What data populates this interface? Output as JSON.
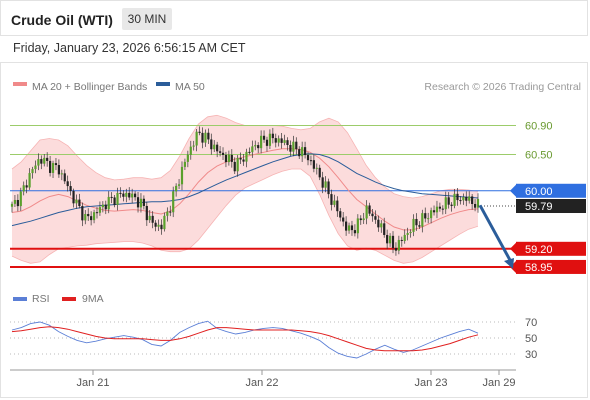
{
  "header": {
    "instrument": "Crude Oil (WTI)",
    "timeframe": "30 MIN",
    "datetime": "Friday, January 23, 2026 6:56:15 AM CET"
  },
  "legend": {
    "ma20_label": "MA 20 + Bollinger Bands",
    "ma50_label": "MA 50",
    "ma20_color": "#f08a8a",
    "ma50_color": "#2b5d9a",
    "credit": "Research © 2026 Trading Central"
  },
  "rsi_legend": {
    "rsi_label": "RSI",
    "ma_label": "9MA",
    "rsi_color": "#5b7fd6",
    "ma_color": "#e02020"
  },
  "chart_data": {
    "type": "candlestick",
    "price_ylim": [
      58.77,
      61.21
    ],
    "x_ticks": [
      "Jan 21",
      "Jan 22",
      "Jan 23",
      "Jan 29"
    ],
    "levels": [
      {
        "value": 60.9,
        "label": "60.90",
        "kind": "resistance",
        "color": "#9ccc6a"
      },
      {
        "value": 60.5,
        "label": "60.50",
        "kind": "resistance",
        "color": "#9ccc6a"
      },
      {
        "value": 60.0,
        "label": "60.00",
        "kind": "pivot",
        "color": "#2f6fe0"
      },
      {
        "value": 59.2,
        "label": "59.20",
        "kind": "support",
        "color": "#e01010"
      },
      {
        "value": 58.95,
        "label": "58.95",
        "kind": "support",
        "color": "#e01010"
      }
    ],
    "last_price": {
      "value": 59.79,
      "label": "59.79"
    },
    "forecast_arrow": {
      "from": 59.8,
      "to": 58.95,
      "color": "#2b5d9a"
    },
    "price_series": [
      59.78,
      59.95,
      60.25,
      60.45,
      60.35,
      60.3,
      60.05,
      59.8,
      59.6,
      59.7,
      59.82,
      59.9,
      59.96,
      59.92,
      59.8,
      59.55,
      59.5,
      59.8,
      60.2,
      60.55,
      60.8,
      60.7,
      60.55,
      60.45,
      60.35,
      60.48,
      60.62,
      60.7,
      60.72,
      60.68,
      60.6,
      60.55,
      60.42,
      60.2,
      59.95,
      59.7,
      59.45,
      59.5,
      59.75,
      59.6,
      59.4,
      59.2,
      59.35,
      59.52,
      59.6,
      59.7,
      59.78,
      59.85,
      59.9,
      59.88,
      59.79
    ],
    "ma20_series": [
      59.7,
      59.72,
      59.78,
      59.86,
      59.92,
      59.95,
      59.92,
      59.86,
      59.8,
      59.76,
      59.73,
      59.72,
      59.73,
      59.74,
      59.73,
      59.7,
      59.68,
      59.72,
      59.82,
      59.96,
      60.12,
      60.25,
      60.34,
      60.4,
      60.44,
      60.47,
      60.5,
      60.53,
      60.56,
      60.58,
      60.58,
      60.57,
      60.53,
      60.45,
      60.33,
      60.18,
      60.02,
      59.88,
      59.78,
      59.68,
      59.58,
      59.5,
      59.46,
      59.46,
      59.5,
      59.56,
      59.62,
      59.67,
      59.71,
      59.74,
      59.75
    ],
    "bb_upper": [
      60.3,
      60.4,
      60.55,
      60.7,
      60.72,
      60.7,
      60.62,
      60.48,
      60.35,
      60.25,
      60.18,
      60.15,
      60.16,
      60.18,
      60.18,
      60.16,
      60.18,
      60.28,
      60.48,
      60.72,
      60.92,
      61.02,
      61.04,
      61.0,
      60.94,
      60.9,
      60.9,
      60.9,
      60.9,
      60.89,
      60.86,
      60.84,
      60.86,
      60.95,
      61.0,
      60.95,
      60.8,
      60.58,
      60.35,
      60.18,
      60.05,
      59.96,
      59.92,
      59.9,
      59.92,
      59.96,
      60.0,
      60.02,
      60.02,
      60.01,
      59.99
    ],
    "bb_lower": [
      59.1,
      59.04,
      59.0,
      59.02,
      59.12,
      59.2,
      59.22,
      59.24,
      59.25,
      59.27,
      59.28,
      59.29,
      59.3,
      59.3,
      59.28,
      59.24,
      59.18,
      59.16,
      59.16,
      59.2,
      59.32,
      59.48,
      59.64,
      59.8,
      59.94,
      60.04,
      60.1,
      60.16,
      60.22,
      60.27,
      60.3,
      60.3,
      60.2,
      59.95,
      59.66,
      59.41,
      59.24,
      59.18,
      59.21,
      59.18,
      59.11,
      59.04,
      59.0,
      59.02,
      59.08,
      59.16,
      59.24,
      59.32,
      59.4,
      59.47,
      59.51
    ],
    "ma50_series": [
      59.52,
      59.55,
      59.58,
      59.62,
      59.66,
      59.7,
      59.73,
      59.76,
      59.78,
      59.79,
      59.8,
      59.81,
      59.82,
      59.83,
      59.84,
      59.85,
      59.85,
      59.86,
      59.88,
      59.92,
      59.97,
      60.03,
      60.09,
      60.15,
      60.2,
      60.25,
      60.3,
      60.35,
      60.4,
      60.44,
      60.48,
      60.5,
      60.51,
      60.5,
      60.46,
      60.4,
      60.32,
      60.24,
      60.18,
      60.12,
      60.07,
      60.03,
      60.0,
      59.98,
      59.96,
      59.95,
      59.94,
      59.93,
      59.92,
      59.91,
      59.9
    ],
    "rsi_ticks": [
      70,
      50,
      30
    ],
    "rsi_ylim": [
      20,
      75
    ],
    "rsi_series": [
      60,
      63,
      68,
      70,
      66,
      58,
      52,
      47,
      44,
      46,
      49,
      51,
      53,
      51,
      48,
      42,
      40,
      47,
      57,
      63,
      68,
      71,
      62,
      58,
      55,
      57,
      60,
      62,
      63,
      62,
      59,
      56,
      52,
      47,
      38,
      31,
      27,
      25,
      30,
      36,
      41,
      36,
      32,
      35,
      40,
      45,
      50,
      54,
      58,
      61,
      56
    ],
    "rsi_ma_series": [
      58,
      59,
      61,
      63,
      64,
      63,
      61,
      58,
      55,
      52,
      50,
      49,
      49,
      49,
      49,
      48,
      47,
      47,
      49,
      52,
      56,
      60,
      63,
      63,
      62,
      61,
      60,
      60,
      60,
      60,
      60,
      59,
      58,
      56,
      53,
      49,
      45,
      41,
      37,
      35,
      34,
      34,
      34,
      34,
      35,
      37,
      40,
      43,
      47,
      51,
      54
    ]
  }
}
